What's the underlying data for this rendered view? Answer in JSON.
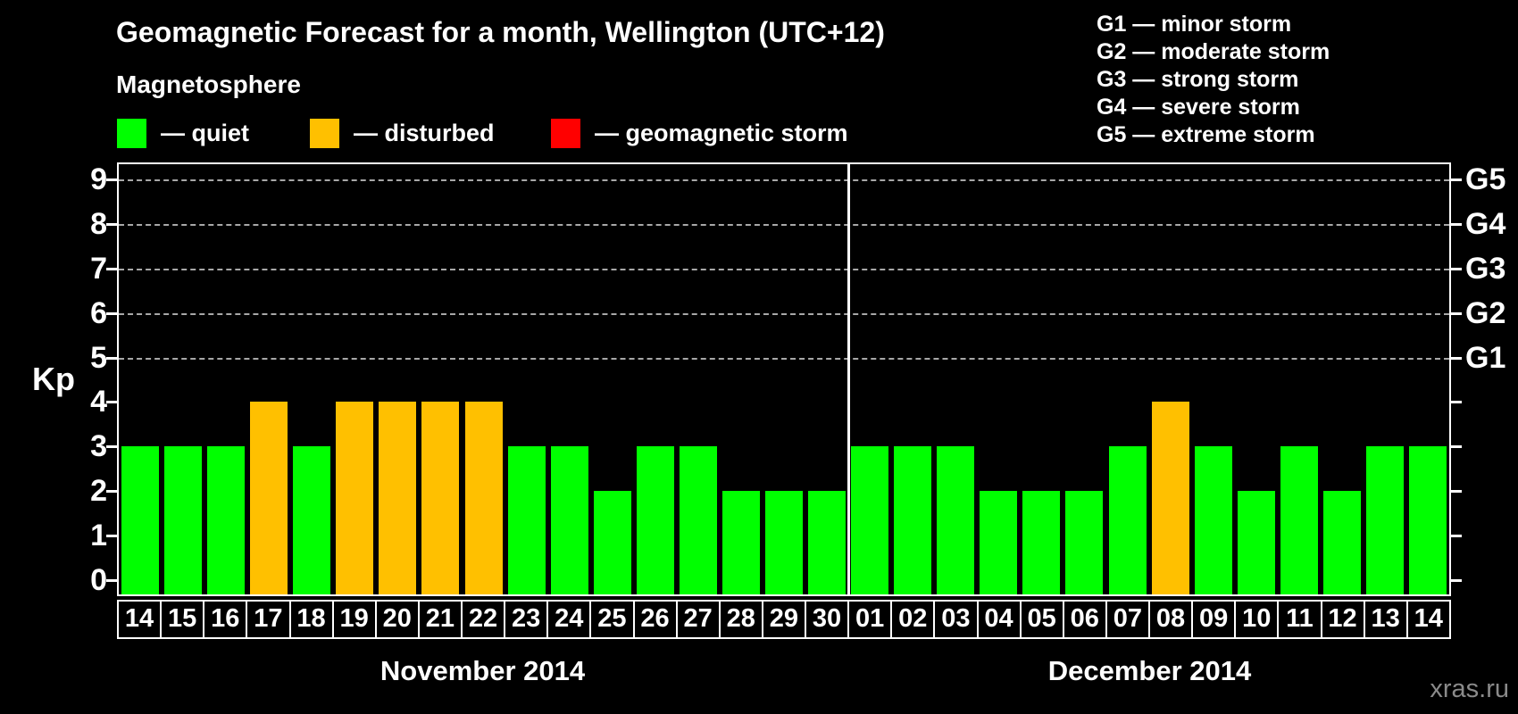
{
  "title": "Geomagnetic Forecast for a month, Wellington (UTC+12)",
  "subtitle": "Magnetosphere",
  "colors": {
    "quiet": "#00ff00",
    "disturbed": "#ffc000",
    "storm": "#ff0000",
    "background": "#000000",
    "grid": "#a8a8a8",
    "watermark_gray": "#8a8a8a"
  },
  "legend": [
    {
      "key": "quiet",
      "label": "— quiet"
    },
    {
      "key": "disturbed",
      "label": "— disturbed"
    },
    {
      "key": "storm",
      "label": "— geomagnetic storm"
    }
  ],
  "g_legend": [
    "G1 — minor storm",
    "G2 — moderate storm",
    "G3 — strong storm",
    "G4 — severe storm",
    "G5 — extreme storm"
  ],
  "axis": {
    "y_label": "Kp",
    "y_ticks": [
      0,
      1,
      2,
      3,
      4,
      5,
      6,
      7,
      8,
      9
    ]
  },
  "watermark": "xras.ru",
  "chart_data": {
    "type": "bar",
    "title": "Geomagnetic Forecast for a month, Wellington (UTC+12)",
    "xlabel": "",
    "ylabel": "Kp",
    "ylim": [
      0,
      9
    ],
    "grid": "dashed horizontal at storm levels only",
    "gridlines_at": [
      5,
      6,
      7,
      8,
      9
    ],
    "right_axis": {
      "levels": [
        5,
        6,
        7,
        8,
        9
      ],
      "labels": [
        "G1",
        "G2",
        "G3",
        "G4",
        "G5"
      ]
    },
    "legend_position": "top",
    "months": [
      {
        "label": "November 2014",
        "days": [
          "14",
          "15",
          "16",
          "17",
          "18",
          "19",
          "20",
          "21",
          "22",
          "23",
          "24",
          "25",
          "26",
          "27",
          "28",
          "29",
          "30"
        ],
        "values": [
          3,
          3,
          3,
          4,
          3,
          4,
          4,
          4,
          4,
          3,
          3,
          2,
          3,
          3,
          2,
          2,
          2
        ],
        "status": [
          "quiet",
          "quiet",
          "quiet",
          "disturbed",
          "quiet",
          "disturbed",
          "disturbed",
          "disturbed",
          "disturbed",
          "quiet",
          "quiet",
          "quiet",
          "quiet",
          "quiet",
          "quiet",
          "quiet",
          "quiet"
        ]
      },
      {
        "label": "December 2014",
        "days": [
          "01",
          "02",
          "03",
          "04",
          "05",
          "06",
          "07",
          "08",
          "09",
          "10",
          "11",
          "12",
          "13",
          "14"
        ],
        "values": [
          3,
          3,
          3,
          2,
          2,
          2,
          3,
          4,
          3,
          2,
          3,
          2,
          3,
          3
        ],
        "status": [
          "quiet",
          "quiet",
          "quiet",
          "quiet",
          "quiet",
          "quiet",
          "quiet",
          "disturbed",
          "quiet",
          "quiet",
          "quiet",
          "quiet",
          "quiet",
          "quiet"
        ]
      }
    ]
  }
}
